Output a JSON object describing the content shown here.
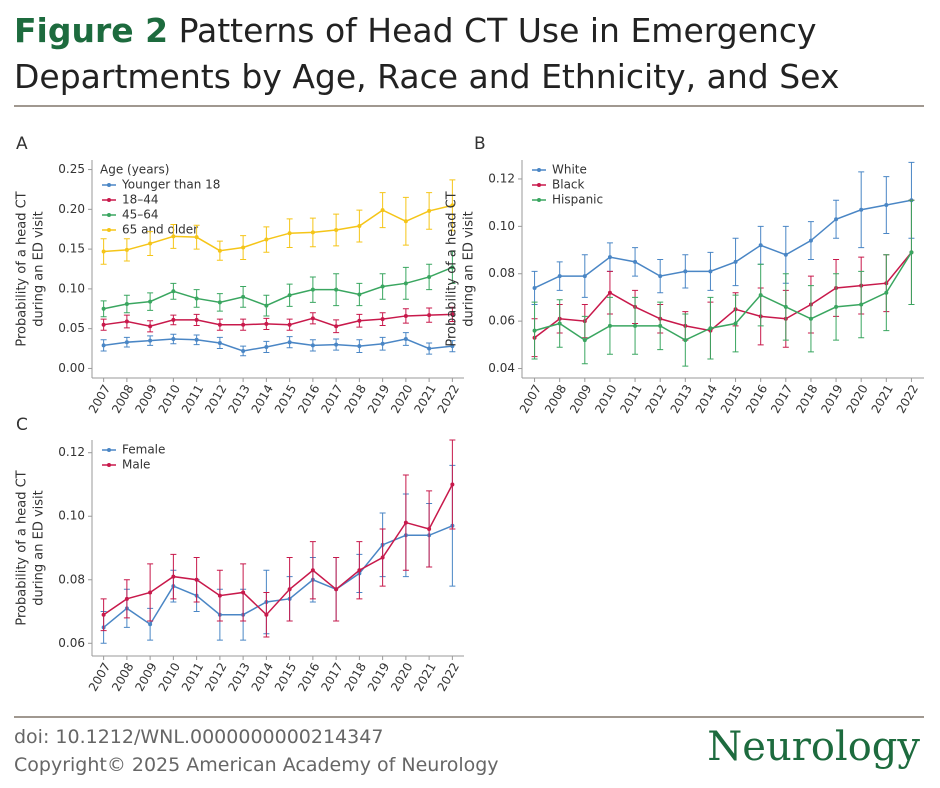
{
  "header": {
    "label": "Figure 2",
    "title": "Patterns of Head CT Use in Emergency Departments by Age, Race and Ethnicity, and Sex"
  },
  "footer": {
    "doi": "doi: 10.1212/WNL.0000000000214347",
    "copyright": "Copyright© 2025 American Academy of Neurology",
    "logo": "Neurology"
  },
  "chart_data": [
    {
      "type": "line",
      "panel": "A",
      "ylabel": [
        "Probability of a head CT",
        "during an ED visit"
      ],
      "legend_title": "Age (years)",
      "categories": [
        "2007",
        "2008",
        "2009",
        "2010",
        "2011",
        "2012",
        "2013",
        "2014",
        "2015",
        "2016",
        "2017",
        "2018",
        "2019",
        "2020",
        "2021",
        "2022"
      ],
      "ylim": [
        -0.012,
        0.262
      ],
      "yticks": [
        {
          "value": 0,
          "label": "0.00"
        },
        0.05,
        {
          "value": 0.1,
          "label": "0.10"
        },
        0.15,
        {
          "value": 0.2,
          "label": "0.20"
        },
        0.25
      ],
      "series": [
        {
          "name": "Younger than 18",
          "color": "#4a86c5",
          "values": [
            0.029,
            0.033,
            0.035,
            0.037,
            0.036,
            0.032,
            0.022,
            0.027,
            0.033,
            0.029,
            0.03,
            0.028,
            0.031,
            0.037,
            0.025,
            0.028
          ],
          "errors": [
            0.007,
            0.006,
            0.006,
            0.006,
            0.006,
            0.007,
            0.006,
            0.007,
            0.007,
            0.007,
            0.007,
            0.008,
            0.008,
            0.008,
            0.007,
            0.007
          ]
        },
        {
          "name": "18–44",
          "color": "#c8194b",
          "values": [
            0.055,
            0.059,
            0.053,
            0.061,
            0.061,
            0.055,
            0.055,
            0.056,
            0.055,
            0.063,
            0.053,
            0.06,
            0.062,
            0.066,
            0.067,
            0.068
          ],
          "errors": [
            0.007,
            0.008,
            0.007,
            0.006,
            0.007,
            0.007,
            0.007,
            0.007,
            0.007,
            0.007,
            0.008,
            0.008,
            0.008,
            0.009,
            0.009,
            0.009
          ]
        },
        {
          "name": "45–64",
          "color": "#3aa660",
          "values": [
            0.075,
            0.081,
            0.084,
            0.097,
            0.088,
            0.083,
            0.09,
            0.079,
            0.092,
            0.099,
            0.099,
            0.093,
            0.103,
            0.107,
            0.115,
            0.127
          ],
          "errors": [
            0.01,
            0.011,
            0.011,
            0.01,
            0.011,
            0.011,
            0.013,
            0.013,
            0.014,
            0.016,
            0.02,
            0.014,
            0.016,
            0.02,
            0.016,
            0.02
          ]
        },
        {
          "name": "65 and older",
          "color": "#f5c518",
          "values": [
            0.147,
            0.149,
            0.157,
            0.166,
            0.165,
            0.148,
            0.152,
            0.162,
            0.17,
            0.171,
            0.174,
            0.179,
            0.199,
            0.185,
            0.198,
            0.205
          ],
          "errors": [
            0.016,
            0.014,
            0.015,
            0.015,
            0.015,
            0.012,
            0.015,
            0.016,
            0.018,
            0.018,
            0.02,
            0.02,
            0.022,
            0.03,
            0.023,
            0.032
          ]
        }
      ]
    },
    {
      "type": "line",
      "panel": "B",
      "ylabel": [
        "Probability of a head CT",
        "during an ED visit"
      ],
      "categories": [
        "2007",
        "2008",
        "2009",
        "2010",
        "2011",
        "2012",
        "2013",
        "2014",
        "2015",
        "2016",
        "2017",
        "2018",
        "2019",
        "2020",
        "2021",
        "2022"
      ],
      "ylim": [
        0.036,
        0.128
      ],
      "yticks": [
        0.04,
        0.06,
        0.08,
        {
          "value": 0.1,
          "label": "0.10"
        },
        0.12
      ],
      "series": [
        {
          "name": "White",
          "color": "#4a86c5",
          "values": [
            0.074,
            0.079,
            0.079,
            0.087,
            0.085,
            0.079,
            0.081,
            0.081,
            0.085,
            0.092,
            0.088,
            0.094,
            0.103,
            0.107,
            0.109,
            0.111
          ],
          "errors": [
            0.007,
            0.006,
            0.009,
            0.006,
            0.006,
            0.007,
            0.007,
            0.008,
            0.01,
            0.008,
            0.012,
            0.008,
            0.008,
            0.016,
            0.012,
            0.016
          ]
        },
        {
          "name": "Black",
          "color": "#c8194b",
          "values": [
            0.053,
            0.061,
            0.06,
            0.072,
            0.066,
            0.061,
            0.058,
            0.056,
            0.065,
            0.062,
            0.061,
            0.067,
            0.074,
            0.075,
            0.076,
            0.089
          ],
          "errors": [
            0.008,
            0.006,
            0.007,
            0.009,
            0.007,
            0.006,
            0.006,
            0.012,
            0.007,
            0.012,
            0.012,
            0.012,
            0.012,
            0.012,
            0.012,
            0.022
          ]
        },
        {
          "name": "Hispanic",
          "color": "#3aa660",
          "values": [
            0.056,
            0.059,
            0.052,
            0.058,
            0.058,
            0.058,
            0.052,
            0.057,
            0.059,
            0.071,
            0.066,
            0.061,
            0.066,
            0.067,
            0.072,
            0.089
          ],
          "errors": [
            0.012,
            0.01,
            0.01,
            0.012,
            0.012,
            0.01,
            0.011,
            0.013,
            0.012,
            0.013,
            0.014,
            0.014,
            0.014,
            0.014,
            0.016,
            0.022
          ]
        }
      ]
    },
    {
      "type": "line",
      "panel": "C",
      "ylabel": [
        "Probability of a head CT",
        "during an ED visit"
      ],
      "categories": [
        "2007",
        "2008",
        "2009",
        "2010",
        "2011",
        "2012",
        "2013",
        "2014",
        "2015",
        "2016",
        "2017",
        "2018",
        "2019",
        "2020",
        "2021",
        "2022"
      ],
      "ylim": [
        0.056,
        0.124
      ],
      "yticks": [
        0.06,
        0.08,
        {
          "value": 0.1,
          "label": "0.10"
        },
        0.12
      ],
      "series": [
        {
          "name": "Female",
          "color": "#4a86c5",
          "values": [
            0.065,
            0.071,
            0.066,
            0.078,
            0.075,
            0.069,
            0.069,
            0.073,
            0.074,
            0.08,
            0.077,
            0.082,
            0.091,
            0.094,
            0.094,
            0.097
          ],
          "errors": [
            0.005,
            0.006,
            0.005,
            0.005,
            0.005,
            0.008,
            0.008,
            0.01,
            0.007,
            0.007,
            0.01,
            0.006,
            0.01,
            0.013,
            0.01,
            0.019
          ]
        },
        {
          "name": "Male",
          "color": "#c8194b",
          "values": [
            0.069,
            0.074,
            0.076,
            0.081,
            0.08,
            0.075,
            0.076,
            0.069,
            0.077,
            0.083,
            0.077,
            0.083,
            0.087,
            0.098,
            0.096,
            0.11
          ],
          "errors": [
            0.005,
            0.006,
            0.009,
            0.007,
            0.007,
            0.008,
            0.009,
            0.007,
            0.01,
            0.009,
            0.01,
            0.009,
            0.009,
            0.015,
            0.012,
            0.014
          ]
        }
      ]
    }
  ]
}
